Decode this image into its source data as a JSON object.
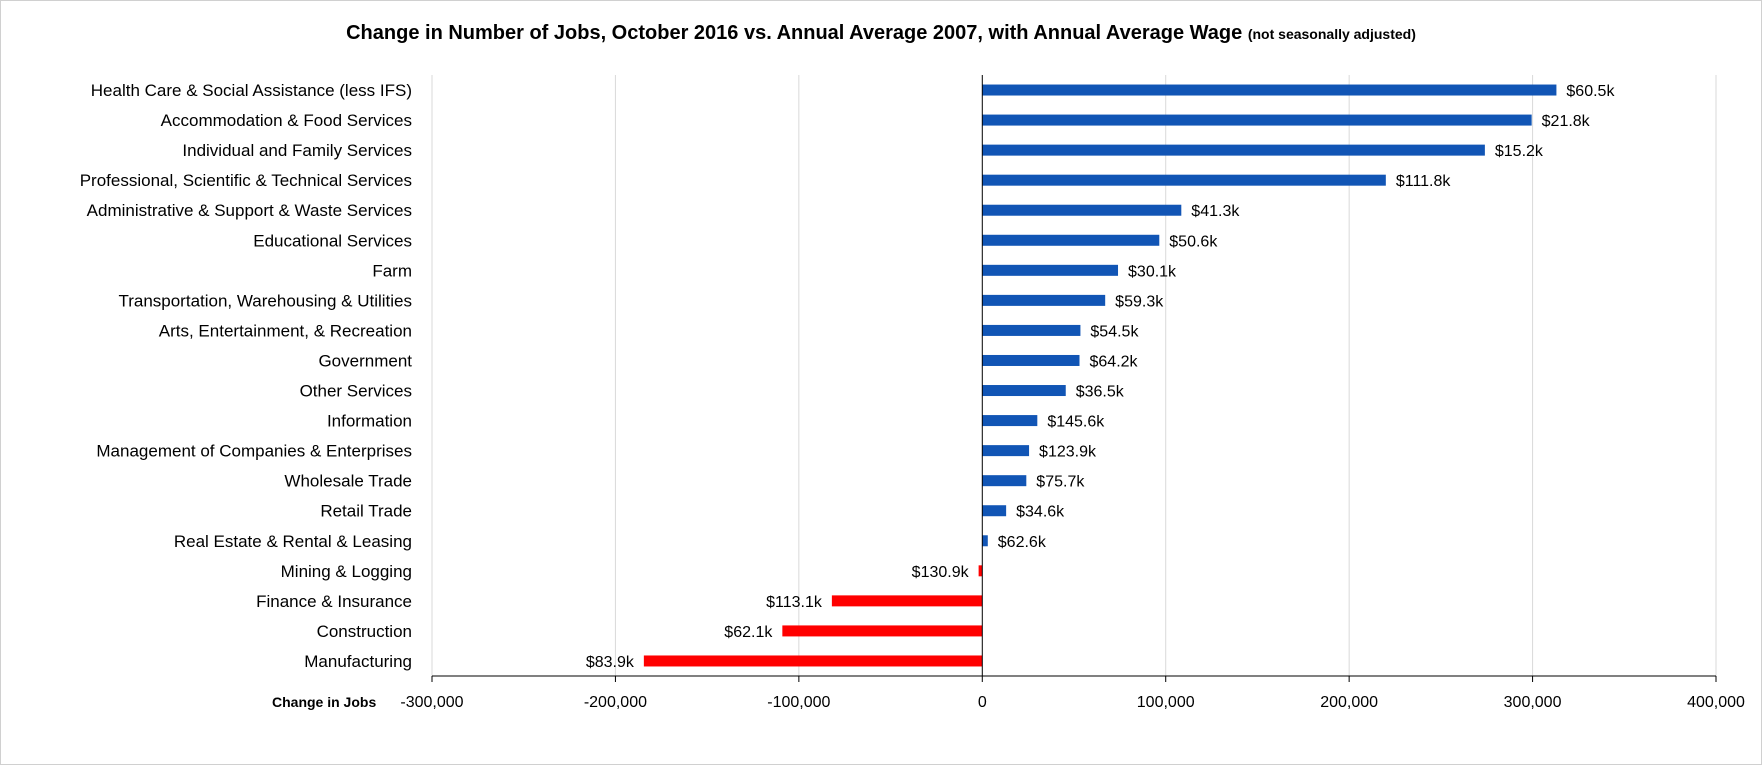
{
  "chart_data": {
    "type": "bar",
    "orientation": "horizontal",
    "title": "Change in Number of Jobs, October 2016 vs. Annual Average 2007, with Annual Average Wage",
    "subtitle": "(not seasonally adjusted)",
    "xlabel": "Change in Jobs",
    "xlim": [
      -300000,
      400000
    ],
    "xticks": [
      -300000,
      -200000,
      -100000,
      0,
      100000,
      200000,
      300000,
      400000
    ],
    "xtick_labels": [
      "-300,000",
      "-200,000",
      "-100,000",
      "0",
      "100,000",
      "200,000",
      "300,000",
      "400,000"
    ],
    "grid": true,
    "positive_color": "#1155b5",
    "negative_color": "#ff0000",
    "categories": [
      "Health Care & Social Assistance (less IFS)",
      "Accommodation & Food Services",
      "Individual and Family Services",
      "Professional, Scientific & Technical Services",
      "Administrative & Support & Waste Services",
      "Educational Services",
      "Farm",
      "Transportation, Warehousing & Utilities",
      "Arts, Entertainment, & Recreation",
      "Government",
      "Other Services",
      "Information",
      "Management of Companies & Enterprises",
      "Wholesale Trade",
      "Retail Trade",
      "Real Estate & Rental & Leasing",
      "Mining & Logging",
      "Finance & Insurance",
      "Construction",
      "Manufacturing"
    ],
    "values": [
      313000,
      299500,
      274000,
      220000,
      108500,
      96500,
      74000,
      67000,
      53500,
      53000,
      45500,
      30000,
      25500,
      24000,
      13000,
      3000,
      -2000,
      -82000,
      -109000,
      -184500
    ],
    "data_labels": [
      "$60.5k",
      "$21.8k",
      "$15.2k",
      "$111.8k",
      "$41.3k",
      "$50.6k",
      "$30.1k",
      "$59.3k",
      "$54.5k",
      "$64.2k",
      "$36.5k",
      "$145.6k",
      "$123.9k",
      "$75.7k",
      "$34.6k",
      "$62.6k",
      "$130.9k",
      "$113.1k",
      "$62.1k",
      "$83.9k"
    ]
  }
}
